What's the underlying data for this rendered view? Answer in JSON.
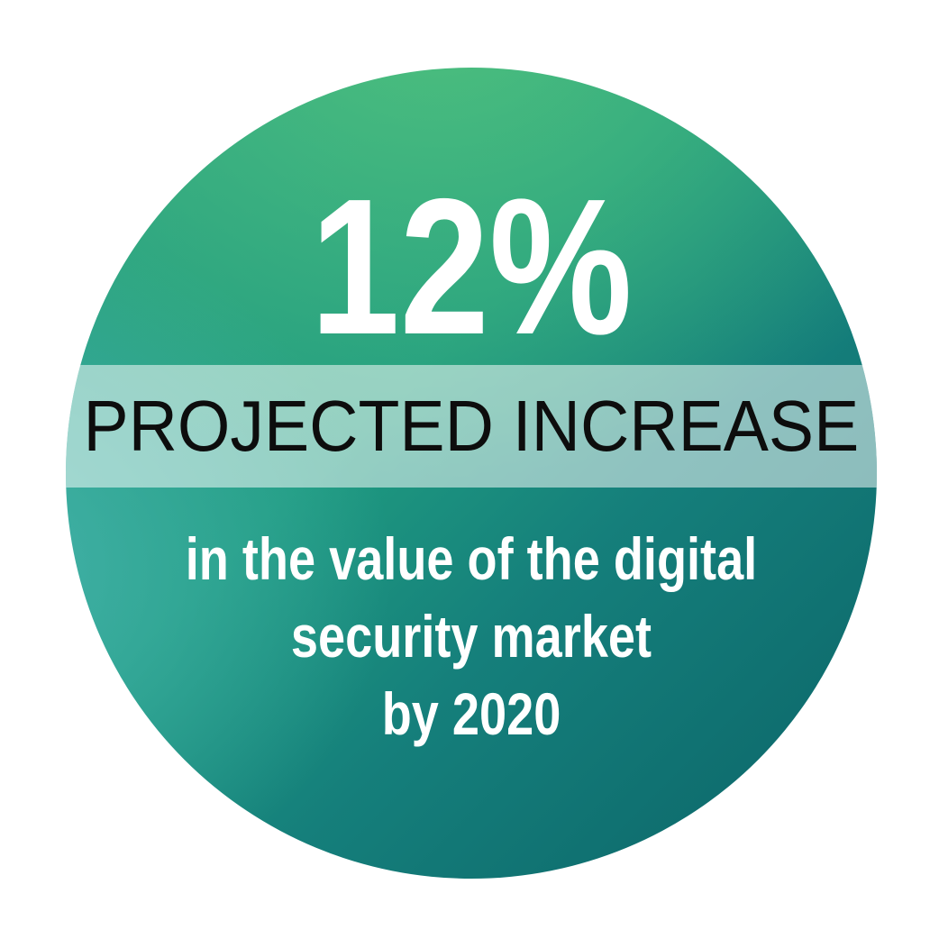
{
  "infographic": {
    "stat_value": "12%",
    "band_label": "PROJECTED INCREASE",
    "description_lines": [
      "in the value of the digital",
      "security market",
      "by 2020"
    ],
    "colors": {
      "page_bg": "#ffffff",
      "grad_green": "#4ec07e",
      "grad_teal_light": "#45b3ab",
      "grad_mid": "#1f9b80",
      "grad_dark": "#0b6468",
      "band_overlay": "rgba(255,255,255,0.52)",
      "band_text": "#0d0d0d",
      "stat_text": "#ffffff"
    }
  },
  "chart_data": {
    "type": "stat",
    "value": 12,
    "unit": "%",
    "label": "PROJECTED INCREASE",
    "description": "in the value of the digital security market by 2020",
    "layout": "circular gradient badge with translucent label band"
  }
}
